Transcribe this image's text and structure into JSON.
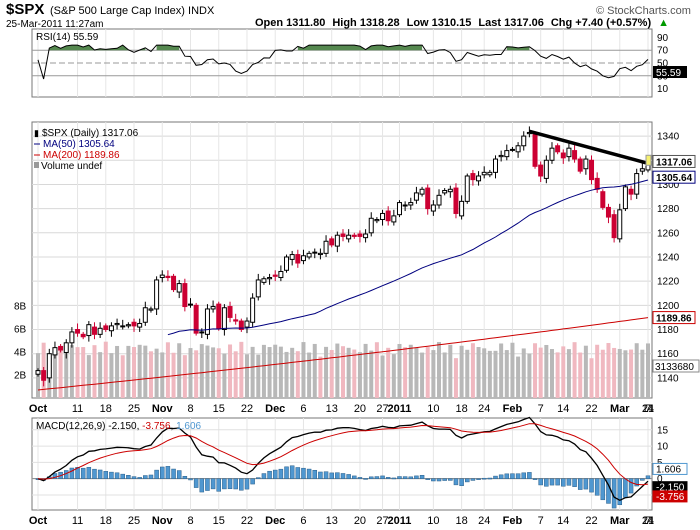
{
  "header": {
    "symbol": "$SPX",
    "description": "(S&P 500 Large Cap Index)",
    "exchange": "INDX",
    "datetime": "25-Mar-2011 11:27am",
    "open_label": "Open 1311.80",
    "high_label": "High 1318.28",
    "low_label": "Low 1310.15",
    "last_label": "Last 1317.06",
    "chg_label": "Chg +7.40 (+0.57%)",
    "arrow": "▲",
    "brand": "© StockCharts.com"
  },
  "rsi_panel": {
    "label": "RSI(14) 55.59",
    "current": 55.59,
    "current_label": "55.59",
    "levels": [
      70,
      30
    ],
    "ticks": [
      "90",
      "70",
      "50",
      "30",
      "10"
    ]
  },
  "price_panel": {
    "legend": [
      {
        "text": "$SPX (Daily) 1317.06",
        "color": "#000000"
      },
      {
        "text": "MA(50) 1305.64",
        "color": "#00007f"
      },
      {
        "text": "MA(200) 1189.86",
        "color": "#cc0000"
      },
      {
        "text": "Volume undef",
        "color": "#000000"
      }
    ],
    "price_ticks": [
      "1340",
      "1320",
      "1300",
      "1280",
      "1260",
      "1240",
      "1220",
      "1200",
      "1180",
      "1160",
      "1140"
    ],
    "volume_ticks": [
      "8B",
      "6B",
      "4B",
      "2B"
    ],
    "badges": {
      "last": "1317.06",
      "ma50": "1305.64",
      "ma200": "1189.86",
      "volume": "3133680"
    }
  },
  "macd_panel": {
    "label_prefix": "MACD(12,26,9)",
    "macd_value": "-2.150",
    "signal_value": "-3.756",
    "hist_value": "1.606",
    "ticks": [
      "15",
      "10",
      "5",
      "0",
      "-5"
    ],
    "badges": {
      "hist": "1.606",
      "macd": "-2.150",
      "signal": "-3.756"
    }
  },
  "x_axis": {
    "labels": [
      {
        "t": "Oct",
        "bold": true
      },
      {
        "t": "11"
      },
      {
        "t": "18"
      },
      {
        "t": "25"
      },
      {
        "t": "Nov",
        "bold": true
      },
      {
        "t": "8"
      },
      {
        "t": "15"
      },
      {
        "t": "22"
      },
      {
        "t": "Dec",
        "bold": true
      },
      {
        "t": "6"
      },
      {
        "t": "13"
      },
      {
        "t": "20"
      },
      {
        "t": "27"
      },
      {
        "t": "2011",
        "bold": true
      },
      {
        "t": "10"
      },
      {
        "t": "18"
      },
      {
        "t": "24"
      },
      {
        "t": "Feb",
        "bold": true
      },
      {
        "t": "7"
      },
      {
        "t": "14"
      },
      {
        "t": "22"
      },
      {
        "t": "Mar",
        "bold": true
      },
      {
        "t": "7"
      },
      {
        "t": "14"
      },
      {
        "t": "21"
      }
    ]
  },
  "colors": {
    "up": "#000000",
    "down": "#cc0033",
    "ma50": "#00007f",
    "ma200": "#cc0000",
    "vol_up": "#b8b8b8",
    "vol_down": "#f0b8c0",
    "macd_hist": "#4f97d0",
    "rsi_fill": "#55884f",
    "trendline": "#000000",
    "last_badge": "#f5f070"
  },
  "chart_data": {
    "type": "candlestick",
    "symbol": "$SPX",
    "period": "Daily",
    "date_range": [
      "2010-10-01",
      "2011-03-25"
    ],
    "last": 1317.06,
    "open": 1311.8,
    "high": 1318.28,
    "low": 1310.15,
    "change": 7.4,
    "change_pct": 0.57,
    "ma50_last": 1305.64,
    "ma200_last": 1189.86,
    "y_range": [
      1125,
      1350
    ],
    "rsi14_last": 55.59,
    "macd": {
      "macd": -2.15,
      "signal": -3.756,
      "hist": 1.606,
      "y_range": [
        -9,
        18
      ]
    },
    "closes": [
      1146,
      1138,
      1160,
      1165,
      1163,
      1169,
      1178,
      1177,
      1174,
      1184,
      1176,
      1181,
      1180,
      1183,
      1185,
      1183,
      1184,
      1183,
      1185,
      1198,
      1197,
      1221,
      1225,
      1223,
      1213,
      1218,
      1199,
      1201,
      1177,
      1178,
      1197,
      1199,
      1181,
      1198,
      1190,
      1187,
      1180,
      1187,
      1206,
      1221,
      1222,
      1223,
      1224,
      1228,
      1240,
      1242,
      1235,
      1241,
      1243,
      1244,
      1243,
      1253,
      1250,
      1258,
      1257,
      1258,
      1257,
      1257,
      1259,
      1272,
      1271,
      1276,
      1270,
      1274,
      1285,
      1283,
      1285,
      1293,
      1296,
      1280,
      1283,
      1291,
      1295,
      1296,
      1276,
      1286,
      1307,
      1304,
      1307,
      1310,
      1310,
      1321,
      1324,
      1328,
      1329,
      1332,
      1340,
      1343,
      1315,
      1307,
      1320,
      1330,
      1327,
      1322,
      1330,
      1321,
      1311,
      1321,
      1304,
      1296,
      1281,
      1273,
      1256,
      1279,
      1298,
      1292,
      1309,
      1313,
      1317
    ],
    "volume_estimated": true,
    "trendline": {
      "from": [
        1343,
        "2011-02-18"
      ],
      "to": [
        1318,
        "2011-03-25"
      ]
    }
  }
}
